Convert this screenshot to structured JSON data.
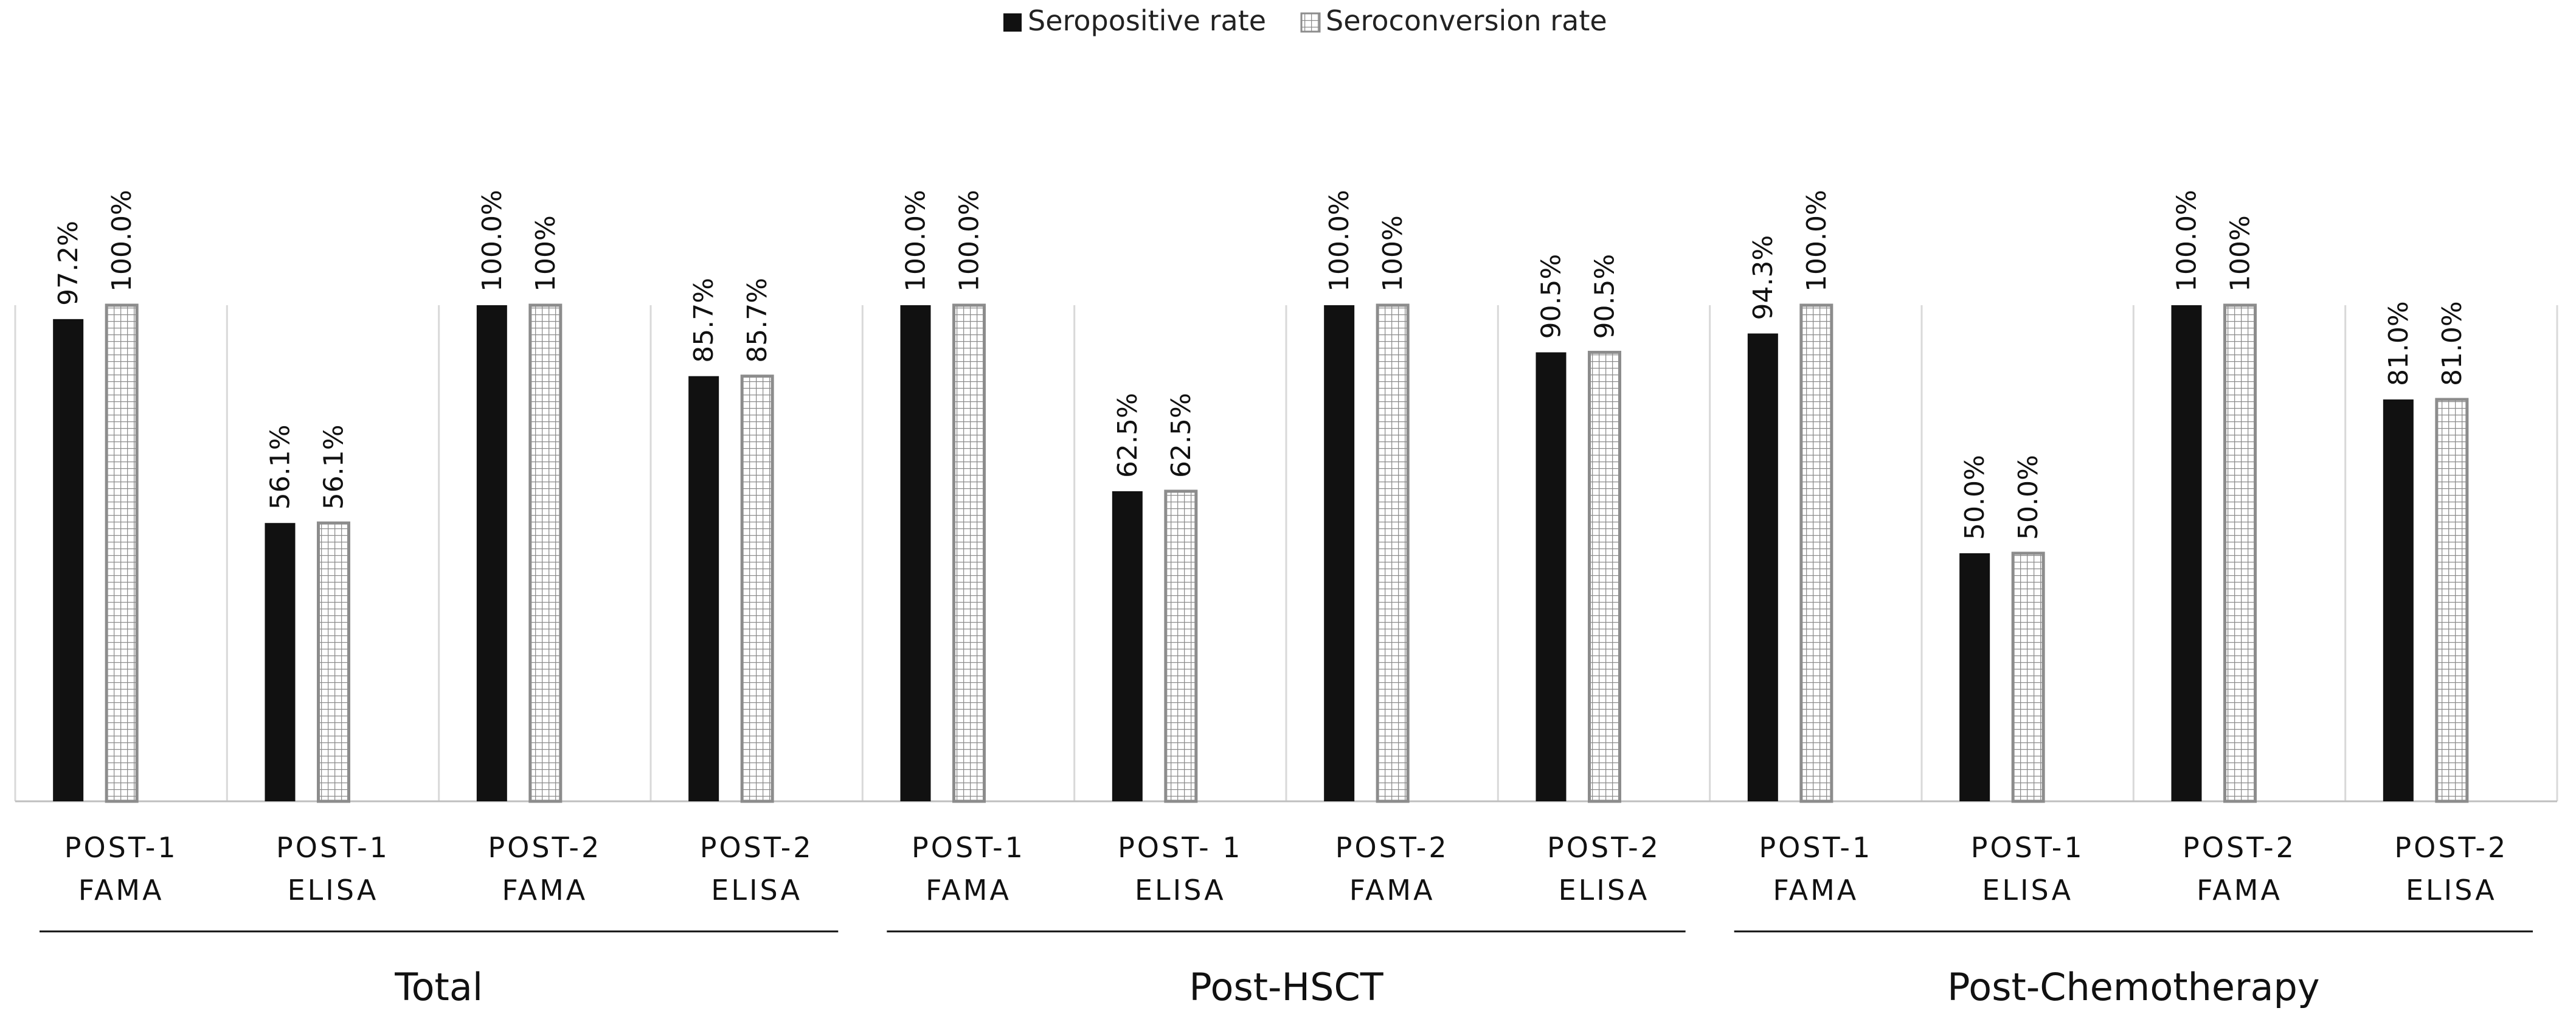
{
  "chart_data": {
    "type": "bar",
    "title": "",
    "xlabel": "",
    "ylabel": "",
    "ylim": [
      0,
      100
    ],
    "legend_position": "top-center",
    "colors": {
      "series_0": "#111111",
      "series_1_border": "#8c8c8c",
      "series_1_fill": "#ffffff"
    },
    "series": [
      {
        "name": "Seropositive rate",
        "pattern": "solid"
      },
      {
        "name": "Seroconversion rate",
        "pattern": "grid"
      }
    ],
    "categories": [
      {
        "line1": "POST-1",
        "line2": "FAMA",
        "values": [
          97.2,
          100.0
        ],
        "labels": [
          "97.2%",
          "100.0%"
        ]
      },
      {
        "line1": "POST-1",
        "line2": "ELISA",
        "values": [
          56.1,
          56.1
        ],
        "labels": [
          "56.1%",
          "56.1%"
        ]
      },
      {
        "line1": "POST-2",
        "line2": "FAMA",
        "values": [
          100.0,
          100.0
        ],
        "labels": [
          "100.0%",
          "100%"
        ]
      },
      {
        "line1": "POST-2",
        "line2": "ELISA",
        "values": [
          85.7,
          85.7
        ],
        "labels": [
          "85.7%",
          "85.7%"
        ]
      },
      {
        "line1": "POST-1",
        "line2": "FAMA",
        "values": [
          100.0,
          100.0
        ],
        "labels": [
          "100.0%",
          "100.0%"
        ]
      },
      {
        "line1": "POST- 1",
        "line2": "ELISA",
        "values": [
          62.5,
          62.5
        ],
        "labels": [
          "62.5%",
          "62.5%"
        ]
      },
      {
        "line1": "POST-2",
        "line2": "FAMA",
        "values": [
          100.0,
          100.0
        ],
        "labels": [
          "100.0%",
          "100%"
        ]
      },
      {
        "line1": "POST-2",
        "line2": "ELISA",
        "values": [
          90.5,
          90.5
        ],
        "labels": [
          "90.5%",
          "90.5%"
        ]
      },
      {
        "line1": "POST-1",
        "line2": "FAMA",
        "values": [
          94.3,
          100.0
        ],
        "labels": [
          "94.3%",
          "100.0%"
        ]
      },
      {
        "line1": "POST-1",
        "line2": "ELISA",
        "values": [
          50.0,
          50.0
        ],
        "labels": [
          "50.0%",
          "50.0%"
        ]
      },
      {
        "line1": "POST-2",
        "line2": "FAMA",
        "values": [
          100.0,
          100.0
        ],
        "labels": [
          "100.0%",
          "100%"
        ]
      },
      {
        "line1": "POST-2",
        "line2": "ELISA",
        "values": [
          81.0,
          81.0
        ],
        "labels": [
          "81.0%",
          "81.0%"
        ]
      }
    ],
    "groups": [
      {
        "label": "Total",
        "category_count": 4
      },
      {
        "label": "Post-HSCT",
        "category_count": 4
      },
      {
        "label": "Post-Chemotherapy",
        "category_count": 4
      }
    ]
  }
}
